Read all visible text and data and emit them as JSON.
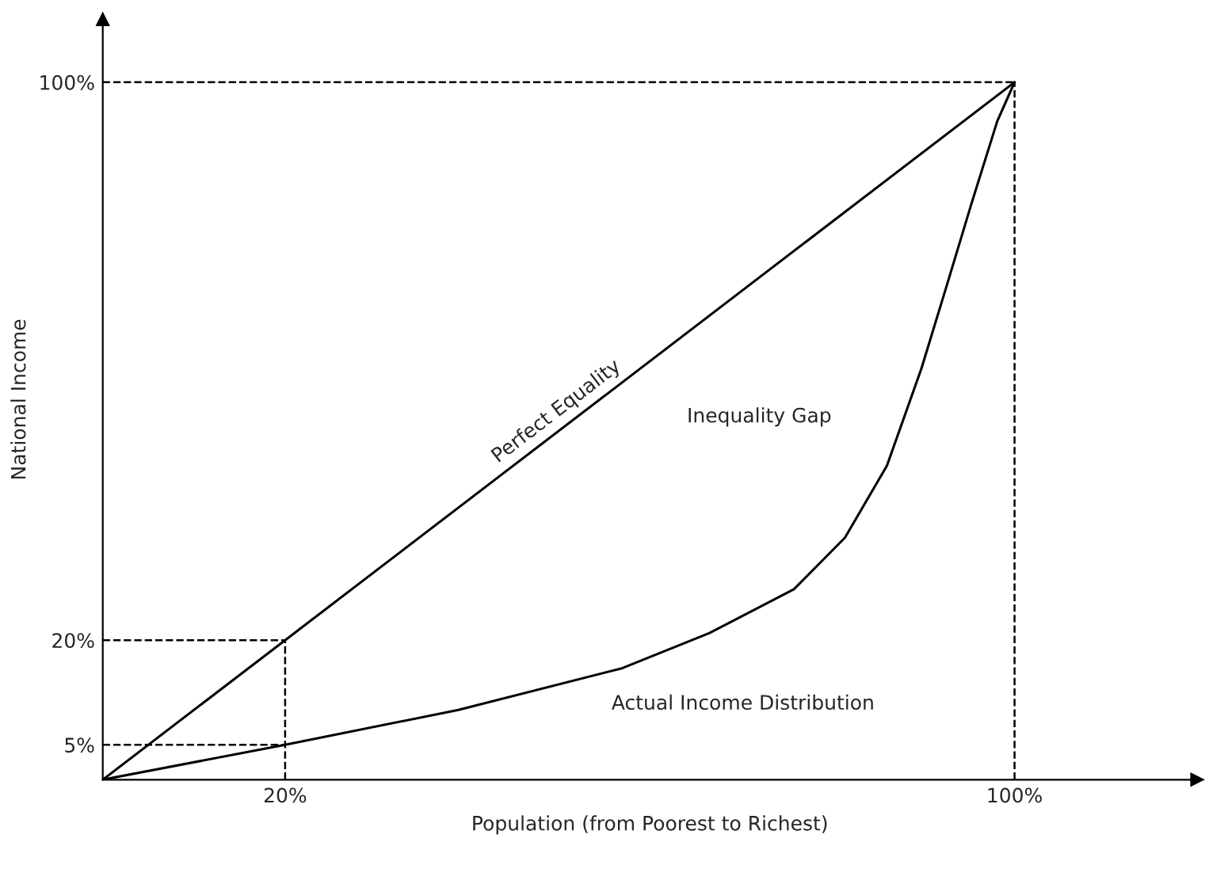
{
  "chart_data": {
    "type": "line",
    "xlabel": "Population (from Poorest to Richest)",
    "ylabel": "National Income",
    "series": [
      {
        "name": "Perfect Equality",
        "color": "#000000",
        "x": [
          0,
          20,
          100
        ],
        "values": [
          0,
          20,
          100
        ]
      },
      {
        "name": "Actual Income Distribution",
        "color": "#000000",
        "x": [
          0,
          20,
          39,
          57,
          66.5,
          75.8,
          81.4,
          86,
          89.8,
          92.6,
          95.3,
          98.1,
          100
        ],
        "values": [
          0,
          5,
          10,
          16,
          21,
          27.3,
          34.7,
          45,
          59,
          71,
          82.7,
          94.4,
          100
        ]
      }
    ],
    "annotations": [
      "Inequality Gap"
    ],
    "ref_lines": [
      {
        "axis": "y",
        "value": 100,
        "line_style": "dashed",
        "color": "#000000"
      },
      {
        "axis": "y",
        "value": 20,
        "line_style": "dashed",
        "color": "#000000"
      },
      {
        "axis": "y",
        "value": 5,
        "line_style": "dashed",
        "color": "#000000"
      },
      {
        "axis": "x",
        "value": 20,
        "line_style": "dashed",
        "color": "#000000"
      },
      {
        "axis": "x",
        "value": 100,
        "line_style": "dashed",
        "color": "#000000"
      }
    ],
    "xlim": [
      0,
      120
    ],
    "ylim": [
      0,
      109
    ],
    "xticks": [
      {
        "value": 20,
        "label": "20%"
      },
      {
        "value": 100,
        "label": "100%"
      }
    ],
    "yticks": [
      {
        "value": 5,
        "label": "5%"
      },
      {
        "value": 20,
        "label": "20%"
      },
      {
        "value": 100,
        "label": "100%"
      }
    ],
    "grid": false,
    "legend": false,
    "marker": "none",
    "line_style": "solid"
  }
}
